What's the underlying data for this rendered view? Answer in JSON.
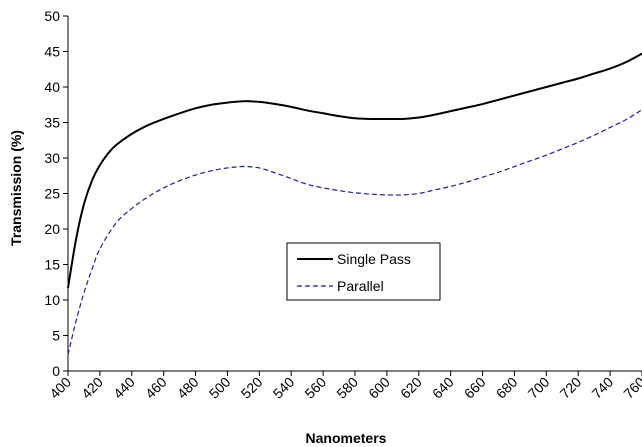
{
  "chart_data": {
    "type": "line",
    "title": "",
    "xlabel": "Nanometers",
    "ylabel": "Transmission (%)",
    "xlim": [
      400,
      760
    ],
    "ylim": [
      0,
      50
    ],
    "x_ticks": [
      400,
      420,
      440,
      460,
      480,
      500,
      520,
      540,
      560,
      580,
      600,
      620,
      640,
      660,
      680,
      700,
      720,
      740,
      760
    ],
    "y_ticks": [
      0,
      5,
      10,
      15,
      20,
      25,
      30,
      35,
      40,
      45,
      50
    ],
    "grid": false,
    "legend_position": "center",
    "series": [
      {
        "name": "Single Pass",
        "color": "#000000",
        "line_style": "solid",
        "x": [
          400,
          405,
          410,
          415,
          420,
          425,
          430,
          440,
          450,
          460,
          470,
          480,
          490,
          500,
          510,
          520,
          530,
          540,
          550,
          560,
          570,
          580,
          590,
          600,
          610,
          620,
          630,
          640,
          650,
          660,
          670,
          680,
          690,
          700,
          710,
          720,
          730,
          740,
          750,
          760
        ],
        "values": [
          11.7,
          18.5,
          23.5,
          26.8,
          29.0,
          30.6,
          31.8,
          33.4,
          34.6,
          35.5,
          36.3,
          37.0,
          37.5,
          37.8,
          38.0,
          37.9,
          37.6,
          37.2,
          36.7,
          36.3,
          35.9,
          35.6,
          35.5,
          35.5,
          35.5,
          35.7,
          36.1,
          36.6,
          37.1,
          37.6,
          38.2,
          38.8,
          39.4,
          40.0,
          40.6,
          41.2,
          41.9,
          42.6,
          43.5,
          44.7
        ]
      },
      {
        "name": "Parallel",
        "color": "#1f1f99",
        "line_style": "dashed",
        "x": [
          400,
          405,
          410,
          415,
          420,
          430,
          440,
          450,
          460,
          470,
          480,
          490,
          500,
          510,
          520,
          530,
          540,
          550,
          560,
          570,
          580,
          590,
          600,
          610,
          620,
          630,
          640,
          650,
          660,
          670,
          680,
          690,
          700,
          710,
          720,
          730,
          740,
          750,
          760
        ],
        "values": [
          2.3,
          7.0,
          11.0,
          14.3,
          17.2,
          20.8,
          22.9,
          24.5,
          25.8,
          26.8,
          27.6,
          28.2,
          28.6,
          28.8,
          28.6,
          27.9,
          27.1,
          26.3,
          25.8,
          25.4,
          25.1,
          24.9,
          24.8,
          24.8,
          25.0,
          25.5,
          26.0,
          26.6,
          27.3,
          28.0,
          28.8,
          29.6,
          30.4,
          31.3,
          32.2,
          33.2,
          34.3,
          35.4,
          36.8
        ]
      }
    ]
  }
}
